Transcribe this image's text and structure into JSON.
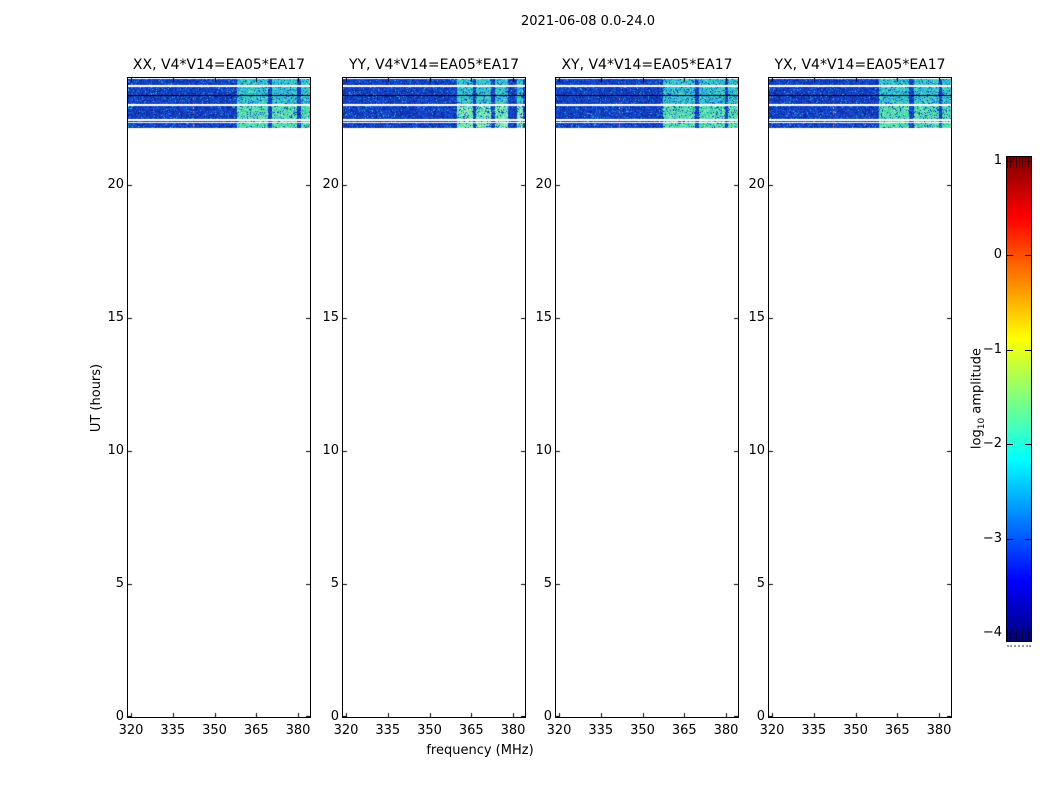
{
  "chart_data": {
    "type": "heatmap",
    "title": "2021-06-08 0.0-24.0",
    "xlabel": "frequency (MHz)",
    "ylabel": "UT (hours)",
    "x_tick_labels": [
      "320",
      "335",
      "350",
      "365",
      "380"
    ],
    "x_tick_values": [
      320,
      335,
      350,
      365,
      380
    ],
    "y_tick_labels": [
      "0",
      "5",
      "10",
      "15",
      "20"
    ],
    "y_tick_values": [
      0,
      5,
      10,
      15,
      20
    ],
    "x_range_mhz": [
      318.9,
      384.3
    ],
    "y_range_hours": [
      0,
      24
    ],
    "panels": [
      {
        "pol": "XX",
        "title": "XX, V4*V14=EA05*EA17",
        "seed": 9137,
        "intense": false,
        "bright_mhz": [
          [
            357.8,
            368.9
          ],
          [
            370.4,
            379.6
          ],
          [
            380.9,
            384.3
          ]
        ],
        "speck_column_mhz": 342.2
      },
      {
        "pol": "YY",
        "title": "YY, V4*V14=EA05*EA17",
        "seed": 9274,
        "intense": true,
        "bright_mhz": [
          [
            359.6,
            365.3
          ],
          [
            366.6,
            371.9
          ],
          [
            373.4,
            377.9
          ],
          [
            381.2,
            383.4
          ]
        ],
        "speck_column_mhz": null
      },
      {
        "pol": "XY",
        "title": "XY, V4*V14=EA05*EA17",
        "seed": 9411,
        "intense": false,
        "bright_mhz": [
          [
            357.2,
            368.5
          ],
          [
            370.2,
            379.3
          ],
          [
            380.6,
            384.3
          ]
        ],
        "speck_column_mhz": 341.6
      },
      {
        "pol": "YX",
        "title": "YX, V4*V14=EA05*EA17",
        "seed": 9548,
        "intense": false,
        "bright_mhz": [
          [
            358.3,
            369.2
          ],
          [
            370.8,
            379.9
          ],
          [
            381.0,
            384.3
          ]
        ],
        "speck_column_mhz": 341.9
      }
    ],
    "signal": {
      "ut_bands": [
        [
          23.75,
          23.97
        ],
        [
          23.37,
          23.66
        ],
        [
          23.04,
          23.33
        ],
        [
          22.47,
          22.95
        ],
        [
          22.36,
          22.4
        ],
        [
          22.14,
          22.32
        ]
      ],
      "divider_ut": [
        23.33,
        23.37
      ],
      "base_log10_amplitude": -2.8,
      "bright_log10_amplitude": -1.8
    },
    "colorbar": {
      "label_parts": {
        "prefix": "log",
        "sub": "10",
        "suffix": " amplitude"
      },
      "tick_labels": [
        "1",
        "0",
        "−1",
        "−2",
        "−3",
        "−4"
      ],
      "tick_values": [
        1,
        0,
        -1,
        -2,
        -3,
        -4
      ],
      "range": [
        -4,
        1
      ],
      "colormap": "jet",
      "end_hatching": true
    }
  }
}
